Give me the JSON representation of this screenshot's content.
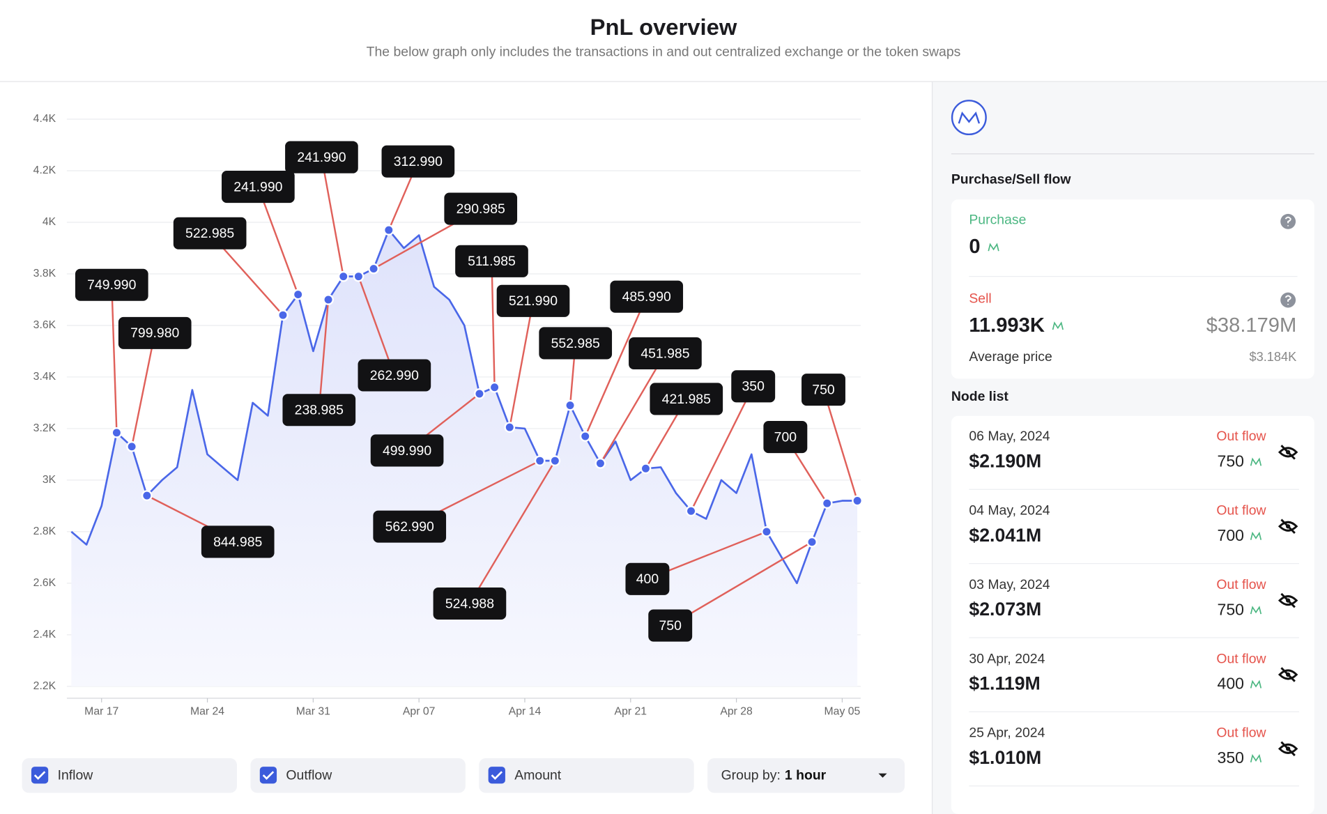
{
  "header": {
    "title": "PnL overview",
    "subtitle": "The below graph only includes the transactions in and out centralized exchange or the token swaps"
  },
  "chart_data": {
    "type": "line",
    "color": "#4a67e8",
    "grid": true,
    "categories": [
      null,
      null,
      "Mar 17",
      null,
      null,
      null,
      null,
      null,
      null,
      "Mar 24",
      null,
      null,
      null,
      null,
      null,
      null,
      "Mar 31",
      null,
      null,
      null,
      null,
      null,
      null,
      "Apr 07",
      null,
      null,
      null,
      null,
      null,
      null,
      "Apr 14",
      null,
      null,
      null,
      null,
      null,
      null,
      "Apr 21",
      null,
      null,
      null,
      null,
      null,
      null,
      "Apr 28",
      null,
      null,
      null,
      null,
      null,
      null,
      "May 05",
      null
    ],
    "values": [
      2800,
      2750,
      2900,
      3184,
      3130,
      2940,
      3000,
      3050,
      3350,
      3100,
      3050,
      3000,
      3300,
      3250,
      3640,
      3720,
      3500,
      3700,
      3790,
      3790,
      3820,
      3970,
      3900,
      3950,
      3750,
      3700,
      3600,
      3335,
      3360,
      3205,
      3200,
      3075,
      3075,
      3290,
      3170,
      3065,
      3150,
      3000,
      3045,
      3050,
      2950,
      2880,
      2850,
      3000,
      2950,
      3100,
      2800,
      2700,
      2600,
      2760,
      2910,
      2920,
      2920
    ],
    "markers": {
      "values": [
        null,
        null,
        null,
        3184,
        3130,
        2940,
        null,
        null,
        null,
        null,
        null,
        null,
        null,
        null,
        3640,
        3720,
        null,
        3700,
        3790,
        3790,
        3820,
        3970,
        null,
        null,
        null,
        null,
        null,
        3335,
        3360,
        3205,
        null,
        3075,
        3075,
        3290,
        3170,
        3065,
        null,
        null,
        3045,
        null,
        null,
        2880,
        null,
        null,
        null,
        null,
        2800,
        null,
        null,
        2760,
        2910,
        null,
        2920
      ],
      "labels": [
        null,
        null,
        null,
        "749.990",
        "799.980",
        "844.985",
        null,
        null,
        null,
        null,
        null,
        null,
        null,
        null,
        "522.985",
        "241.990",
        null,
        "238.985",
        "241.990",
        "262.990",
        "290.985",
        "312.990",
        null,
        null,
        null,
        null,
        null,
        "499.990",
        "511.985",
        "521.990",
        null,
        "562.990",
        "524.988",
        "552.985",
        "485.990",
        "451.985",
        null,
        null,
        "421.985",
        null,
        null,
        "350",
        null,
        null,
        null,
        null,
        "400",
        null,
        null,
        "750",
        "700",
        null,
        "750"
      ]
    },
    "ylim": [
      2200,
      4400
    ],
    "yticks": [
      {
        "value": 2200,
        "label": "2.2K"
      },
      {
        "value": 2400,
        "label": "2.4K"
      },
      {
        "value": 2600,
        "label": "2.6K"
      },
      {
        "value": 2800,
        "label": "2.8K"
      },
      {
        "value": 3000,
        "label": "3K"
      },
      {
        "value": 3200,
        "label": "3.2K"
      },
      {
        "value": 3400,
        "label": "3.4K"
      },
      {
        "value": 3600,
        "label": "3.6K"
      },
      {
        "value": 3800,
        "label": "3.8K"
      },
      {
        "value": 4000,
        "label": "4K"
      },
      {
        "value": 4200,
        "label": "4.2K"
      },
      {
        "value": 4400,
        "label": "4.4K"
      }
    ]
  },
  "controls": {
    "checkboxes": [
      "Inflow",
      "Outflow",
      "Amount"
    ],
    "group_by": {
      "label": "Group by:",
      "value": "1 hour"
    }
  },
  "panel": {
    "section_title": "Purchase/Sell flow",
    "purchase": {
      "label": "Purchase",
      "amount": 0
    },
    "sell": {
      "label": "Sell",
      "amount": "11.993K",
      "usd": "$38.179M",
      "average_label": "Average price",
      "average": "$3.184K"
    },
    "node_title": "Node list",
    "nodes": [
      {
        "date": "06 May, 2024",
        "usd": "$2.190M",
        "flow": "Out flow",
        "amount": 750
      },
      {
        "date": "04 May, 2024",
        "usd": "$2.041M",
        "flow": "Out flow",
        "amount": 700
      },
      {
        "date": "03 May, 2024",
        "usd": "$2.073M",
        "flow": "Out flow",
        "amount": 750
      },
      {
        "date": "30 Apr, 2024",
        "usd": "$1.119M",
        "flow": "Out flow",
        "amount": 400
      },
      {
        "date": "25 Apr, 2024",
        "usd": "$1.010M",
        "flow": "Out flow",
        "amount": 350
      }
    ]
  }
}
